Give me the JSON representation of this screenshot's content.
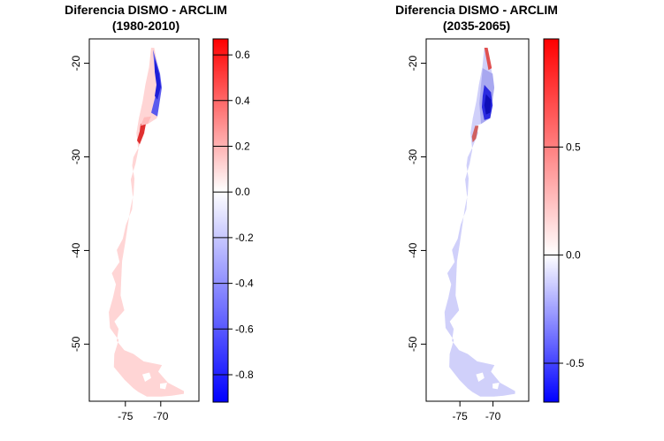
{
  "chart_data": [
    {
      "type": "heatmap",
      "title": "Diferencia DISMO - ARCLIM",
      "subtitle": "(1980-2010)",
      "xlabel": "",
      "ylabel": "",
      "x_ticks": [
        -75,
        -70
      ],
      "y_ticks": [
        -20,
        -30,
        -40,
        -50
      ],
      "x_tick_labels": [
        "-75",
        "-70"
      ],
      "y_tick_labels": [
        "-20",
        "-30",
        "-40",
        "-50"
      ],
      "xlim": [
        -80.1,
        -64.6
      ],
      "ylim": [
        -56.1,
        -17.4
      ],
      "legend": {
        "placement": "right",
        "range": [
          -0.92,
          0.67
        ],
        "ticks": [
          0.6,
          0.4,
          0.2,
          0.0,
          -0.2,
          -0.4,
          -0.6,
          -0.8
        ],
        "tick_labels": [
          "0.6",
          "0.4",
          "0.2",
          "0.0",
          "-0.2",
          "-0.4",
          "-0.6",
          "-0.8"
        ],
        "colors": [
          "#0000ff",
          "#ffffff",
          "#ff0000"
        ]
      },
      "regions": [
        {
          "lat_range": [
            -18,
            -26
          ],
          "value": -0.7
        },
        {
          "lat_range": [
            -26,
            -32
          ],
          "value": 0.2
        },
        {
          "lat_range": [
            -32,
            -56
          ],
          "value": 0.15
        }
      ]
    },
    {
      "type": "heatmap",
      "title": "Diferencia DISMO - ARCLIM",
      "subtitle": "(2035-2065)",
      "xlabel": "",
      "ylabel": "",
      "x_ticks": [
        -75,
        -70
      ],
      "y_ticks": [
        -20,
        -30,
        -40,
        -50
      ],
      "x_tick_labels": [
        "-75",
        "-70"
      ],
      "y_tick_labels": [
        "-20",
        "-30",
        "-40",
        "-50"
      ],
      "xlim": [
        -80.1,
        -64.6
      ],
      "ylim": [
        -56.1,
        -17.4
      ],
      "legend": {
        "placement": "right",
        "range": [
          -0.68,
          1.0
        ],
        "ticks": [
          0.5,
          0.0,
          -0.5
        ],
        "tick_labels": [
          "0.5",
          "0.0",
          "-0.5"
        ],
        "colors": [
          "#0000ff",
          "#ffffff",
          "#ff0000"
        ]
      },
      "regions": [
        {
          "lat_range": [
            -18,
            -21
          ],
          "value": 0.5
        },
        {
          "lat_range": [
            -21,
            -28
          ],
          "value": -0.5
        },
        {
          "lat_range": [
            -28,
            -56
          ],
          "value": -0.15
        }
      ]
    }
  ]
}
